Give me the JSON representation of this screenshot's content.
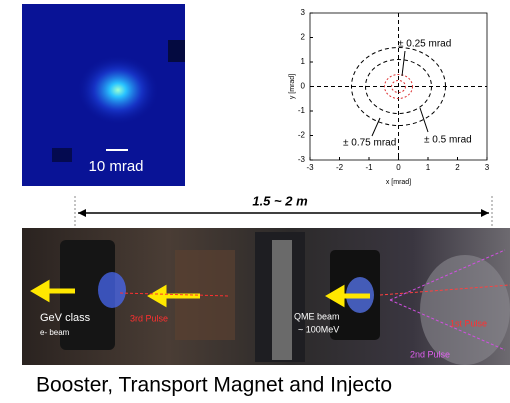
{
  "beam_image": {
    "scale_label": "10 mrad"
  },
  "plot": {
    "x_label": "x [mrad]",
    "y_label": "y [mrad]",
    "xticks": [
      -3,
      -2,
      -1,
      0,
      1,
      2,
      3
    ],
    "yticks": [
      -3,
      -2,
      -1,
      0,
      1,
      2,
      3
    ],
    "annotations": [
      "± 0.25 mrad",
      "± 0.5 mrad",
      "± 0.75 mrad"
    ]
  },
  "distance_label": "1.5 ~ 2 m",
  "photo": {
    "labels": [
      "GeV class",
      "e- beam",
      "3rd Pulse",
      "QME beam",
      "~ 100MeV",
      "1st Pulse",
      "2nd Pulse"
    ]
  },
  "caption": "Booster, Transport Magnet and Injecto"
}
